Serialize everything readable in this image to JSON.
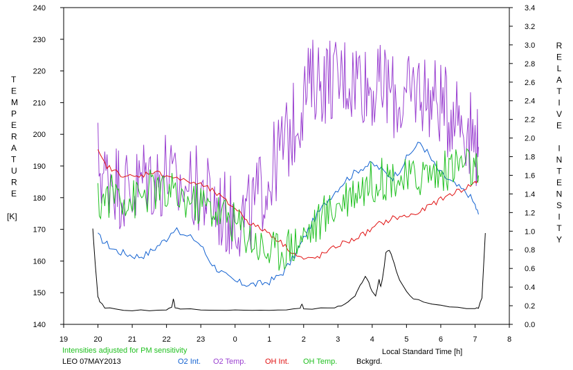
{
  "chart_data": {
    "type": "line",
    "xlabel": "Local Standard Time [h]",
    "ylabel_left_letters": [
      "T",
      "E",
      "M",
      "P",
      "E",
      "R",
      "A",
      "T",
      "U",
      "R",
      "E",
      "",
      "[K]"
    ],
    "ylabel_right_letters": [
      "R",
      "E",
      "L",
      "A",
      "T",
      "I",
      "V",
      "E",
      "",
      "I",
      "N",
      "T",
      "E",
      "N",
      "S",
      "I",
      "T",
      "Y"
    ],
    "x_ticks": [
      "19",
      "20",
      "21",
      "22",
      "23",
      "0",
      "1",
      "2",
      "3",
      "4",
      "5",
      "6",
      "7",
      "8"
    ],
    "y_left_ticks": [
      "140",
      "150",
      "160",
      "170",
      "180",
      "190",
      "200",
      "210",
      "220",
      "230",
      "240"
    ],
    "y_right_ticks": [
      "0.0",
      "0.2",
      "0.4",
      "0.6",
      "0.8",
      "1.0",
      "1.2",
      "1.4",
      "1.6",
      "1.8",
      "2.0",
      "2.2",
      "2.4",
      "2.6",
      "2.8",
      "3.0",
      "3.2",
      "3.4"
    ],
    "xlim": [
      19,
      32
    ],
    "ylim_left": [
      140,
      240
    ],
    "ylim_right": [
      0,
      3.4
    ],
    "note": "Intensities adjusted for PM sensitivity",
    "station": "LEO 07MAY2013",
    "grid": false,
    "series": [
      {
        "name": "O2 Int.",
        "color": "#1060d0",
        "axis": "right",
        "x": [
          20.0,
          20.2,
          20.4,
          20.6,
          20.8,
          21.0,
          21.2,
          21.4,
          21.6,
          21.8,
          22.0,
          22.2,
          22.5,
          22.8,
          23.0,
          23.2,
          23.4,
          23.6,
          23.8,
          24.0,
          24.2,
          24.4,
          24.6,
          24.8,
          25.0,
          25.2,
          25.4,
          25.6,
          25.8,
          26.0,
          26.2,
          26.4,
          26.6,
          26.8,
          27.0,
          27.2,
          27.4,
          27.6,
          27.8,
          28.0,
          28.2,
          28.4,
          28.6,
          28.8,
          29.0,
          29.2,
          29.4,
          29.6,
          29.8,
          30.0,
          30.2,
          30.4,
          30.6,
          30.8,
          31.0,
          31.1
        ],
        "values": [
          0.95,
          0.88,
          0.82,
          0.78,
          0.76,
          0.74,
          0.73,
          0.75,
          0.8,
          0.86,
          0.92,
          1.02,
          0.95,
          0.92,
          0.85,
          0.72,
          0.62,
          0.56,
          0.5,
          0.46,
          0.44,
          0.43,
          0.43,
          0.44,
          0.46,
          0.5,
          0.56,
          0.66,
          0.78,
          0.92,
          1.06,
          1.18,
          1.28,
          1.38,
          1.46,
          1.54,
          1.6,
          1.66,
          1.7,
          1.72,
          1.68,
          1.62,
          1.58,
          1.66,
          1.78,
          1.88,
          1.95,
          1.85,
          1.72,
          1.62,
          1.56,
          1.5,
          1.45,
          1.4,
          1.28,
          1.18
        ]
      },
      {
        "name": "O2 Temp.",
        "color": "#9a40d0",
        "axis": "left",
        "x": [
          20.0,
          20.2,
          20.4,
          20.6,
          20.8,
          21.0,
          21.2,
          21.4,
          21.6,
          21.8,
          22.0,
          22.2,
          22.5,
          22.8,
          23.0,
          23.2,
          23.4,
          23.6,
          23.8,
          24.0,
          24.2,
          24.4,
          24.6,
          24.8,
          25.0,
          25.2,
          25.4,
          25.6,
          25.8,
          26.0,
          26.2,
          26.4,
          26.6,
          26.8,
          27.0,
          27.2,
          27.4,
          27.6,
          27.8,
          28.0,
          28.2,
          28.4,
          28.6,
          28.8,
          29.0,
          29.2,
          29.4,
          29.6,
          29.8,
          30.0,
          30.2,
          30.4,
          30.6,
          30.8,
          31.0,
          31.1
        ],
        "values": [
          192,
          186,
          188,
          184,
          183,
          182,
          184,
          188,
          186,
          185,
          190,
          182,
          184,
          183,
          182,
          180,
          178,
          176,
          174,
          175,
          174,
          174,
          178,
          183,
          186,
          192,
          196,
          200,
          205,
          212,
          216,
          218,
          217,
          218,
          216,
          219,
          217,
          220,
          216,
          215,
          214,
          216,
          212,
          210,
          210,
          214,
          215,
          212,
          211,
          210,
          206,
          210,
          205,
          202,
          198,
          196
        ]
      },
      {
        "name": "OH Int.",
        "color": "#e01010",
        "axis": "right",
        "x": [
          20.0,
          20.2,
          20.4,
          20.6,
          20.8,
          21.0,
          21.2,
          21.4,
          21.6,
          21.8,
          22.0,
          22.2,
          22.5,
          22.8,
          23.0,
          23.2,
          23.4,
          23.6,
          23.8,
          24.0,
          24.2,
          24.4,
          24.6,
          24.8,
          25.0,
          25.2,
          25.4,
          25.6,
          25.8,
          26.0,
          26.2,
          26.4,
          26.6,
          26.8,
          27.0,
          27.2,
          27.4,
          27.6,
          27.8,
          28.0,
          28.2,
          28.4,
          28.6,
          28.8,
          29.0,
          29.2,
          29.4,
          29.6,
          29.8,
          30.0,
          30.2,
          30.4,
          30.6,
          30.8,
          31.0,
          31.1
        ],
        "values": [
          1.85,
          1.72,
          1.66,
          1.62,
          1.6,
          1.58,
          1.58,
          1.62,
          1.64,
          1.62,
          1.6,
          1.58,
          1.54,
          1.52,
          1.5,
          1.46,
          1.42,
          1.36,
          1.3,
          1.25,
          1.18,
          1.1,
          1.05,
          1.02,
          0.98,
          0.92,
          0.86,
          0.8,
          0.74,
          0.7,
          0.7,
          0.72,
          0.76,
          0.8,
          0.85,
          0.88,
          0.9,
          0.94,
          0.98,
          1.02,
          1.08,
          1.1,
          1.14,
          1.15,
          1.16,
          1.18,
          1.2,
          1.26,
          1.3,
          1.34,
          1.38,
          1.42,
          1.44,
          1.48,
          1.52,
          1.55
        ]
      },
      {
        "name": "OH Temp.",
        "color": "#20c020",
        "axis": "left",
        "x": [
          20.0,
          20.2,
          20.4,
          20.6,
          20.8,
          21.0,
          21.2,
          21.4,
          21.6,
          21.8,
          22.0,
          22.2,
          22.5,
          22.8,
          23.0,
          23.2,
          23.4,
          23.6,
          23.8,
          24.0,
          24.2,
          24.4,
          24.6,
          24.8,
          25.0,
          25.2,
          25.4,
          25.6,
          25.8,
          26.0,
          26.2,
          26.4,
          26.6,
          26.8,
          27.0,
          27.2,
          27.4,
          27.6,
          27.8,
          28.0,
          28.2,
          28.4,
          28.6,
          28.8,
          29.0,
          29.2,
          29.4,
          29.6,
          29.8,
          30.0,
          30.2,
          30.4,
          30.6,
          30.8,
          31.0,
          31.1
        ],
        "values": [
          178,
          180,
          181,
          182,
          180,
          179,
          180,
          181,
          183,
          182,
          180,
          181,
          180,
          178,
          178,
          177,
          176,
          175,
          174,
          172,
          170,
          168,
          166,
          164,
          163,
          163,
          164,
          165,
          166,
          168,
          170,
          172,
          174,
          176,
          178,
          180,
          182,
          183,
          184,
          185,
          186,
          186,
          187,
          186,
          185,
          186,
          187,
          188,
          188,
          187,
          189,
          190,
          191,
          190,
          188,
          187
        ]
      },
      {
        "name": "Bckgrd.",
        "color": "#000000",
        "axis": "right",
        "x": [
          19.85,
          19.92,
          20.0,
          20.05,
          20.2,
          20.5,
          21.0,
          21.5,
          22.0,
          22.15,
          22.2,
          22.25,
          22.4,
          23.0,
          23.5,
          24.0,
          24.5,
          25.0,
          25.5,
          25.9,
          25.95,
          26.0,
          26.5,
          26.9,
          27.1,
          27.3,
          27.5,
          27.6,
          27.7,
          27.8,
          27.9,
          28.0,
          28.1,
          28.15,
          28.2,
          28.25,
          28.3,
          28.35,
          28.4,
          28.5,
          28.6,
          28.7,
          28.8,
          29.0,
          29.2,
          29.5,
          30.0,
          30.5,
          31.0,
          31.1,
          31.2,
          31.3
        ],
        "values": [
          1.02,
          0.65,
          0.3,
          0.25,
          0.18,
          0.16,
          0.15,
          0.15,
          0.16,
          0.18,
          0.28,
          0.18,
          0.16,
          0.16,
          0.15,
          0.15,
          0.15,
          0.15,
          0.16,
          0.17,
          0.22,
          0.17,
          0.17,
          0.18,
          0.2,
          0.24,
          0.3,
          0.38,
          0.45,
          0.52,
          0.45,
          0.35,
          0.3,
          0.38,
          0.48,
          0.4,
          0.5,
          0.62,
          0.78,
          0.8,
          0.7,
          0.58,
          0.48,
          0.35,
          0.28,
          0.24,
          0.2,
          0.18,
          0.17,
          0.18,
          0.28,
          0.98
        ]
      }
    ]
  }
}
